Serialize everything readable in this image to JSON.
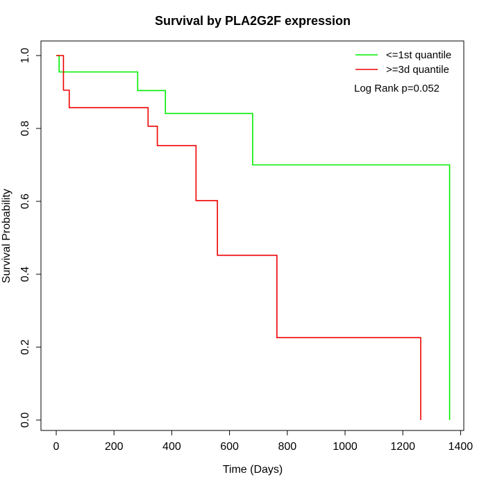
{
  "chart_data": {
    "type": "line",
    "step": true,
    "title": "Survival by PLA2G2F expression",
    "xlabel": "Time (Days)",
    "ylabel": "Survival Probability",
    "xlim": [
      0,
      1400
    ],
    "ylim": [
      0,
      1
    ],
    "x_ticks": [
      0,
      200,
      400,
      600,
      800,
      1000,
      1200,
      1400
    ],
    "y_ticks": [
      0.0,
      0.2,
      0.4,
      0.6,
      0.8,
      1.0
    ],
    "x_tick_labels": [
      "0",
      "200",
      "400",
      "600",
      "800",
      "1000",
      "1200",
      "1400"
    ],
    "y_tick_labels": [
      "0.0",
      "0.2",
      "0.4",
      "0.6",
      "0.8",
      "1.0"
    ],
    "grid": false,
    "legend_position": "top-right",
    "series": [
      {
        "name": "<=1st quantile",
        "color": "#00ee00",
        "x": [
          0,
          10,
          282,
          378,
          680,
          1362
        ],
        "y": [
          1.0,
          0.955,
          0.904,
          0.841,
          0.7,
          0.0
        ]
      },
      {
        "name": ">=3d quantile",
        "color": "#ee0000",
        "x": [
          0,
          25,
          45,
          318,
          350,
          484,
          558,
          764,
          1262
        ],
        "y": [
          1.0,
          0.905,
          0.857,
          0.806,
          0.753,
          0.602,
          0.452,
          0.226,
          0.0
        ]
      }
    ],
    "annotation": "Log Rank p=0.052"
  }
}
